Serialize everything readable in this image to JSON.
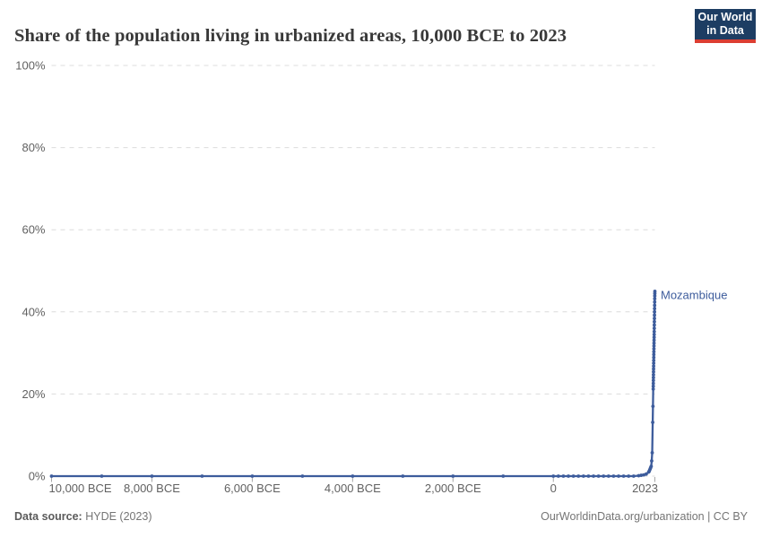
{
  "header": {
    "title": "Share of the population living in urbanized areas, 10,000 BCE to 2023",
    "logo": {
      "line1": "Our World",
      "line2": "in Data"
    }
  },
  "colors": {
    "line": "#3d5c9c",
    "grid": "#dcdcdc",
    "axis_tick": "#a8a8a8",
    "tick_label": "#616161",
    "title": "#383838",
    "footer": "#757575",
    "logo_bg": "#1d3d63",
    "logo_accent": "#dc3e32"
  },
  "chart_data": {
    "type": "line",
    "title": "Share of the population living in urbanized areas, 10,000 BCE to 2023",
    "xlabel": "",
    "ylabel": "",
    "grid": true,
    "xlim": [
      -10000,
      2023
    ],
    "ylim": [
      0,
      100
    ],
    "yticks": [
      {
        "value": 0,
        "label": "0%"
      },
      {
        "value": 20,
        "label": "20%"
      },
      {
        "value": 40,
        "label": "40%"
      },
      {
        "value": 60,
        "label": "60%"
      },
      {
        "value": 80,
        "label": "80%"
      },
      {
        "value": 100,
        "label": "100%"
      }
    ],
    "xticks": [
      {
        "value": -10000,
        "label": "10,000 BCE"
      },
      {
        "value": -8000,
        "label": "8,000 BCE"
      },
      {
        "value": -6000,
        "label": "6,000 BCE"
      },
      {
        "value": -4000,
        "label": "4,000 BCE"
      },
      {
        "value": -2000,
        "label": "2,000 BCE"
      },
      {
        "value": 0,
        "label": "0"
      },
      {
        "value": 2023,
        "label": "2023"
      }
    ],
    "legend_position": "end-of-line",
    "series": [
      {
        "name": "Mozambique",
        "color": "#3d5c9c",
        "points": [
          [
            -10000,
            0
          ],
          [
            -9000,
            0
          ],
          [
            -8000,
            0
          ],
          [
            -7000,
            0
          ],
          [
            -6000,
            0
          ],
          [
            -5000,
            0
          ],
          [
            -4000,
            0
          ],
          [
            -3000,
            0
          ],
          [
            -2000,
            0
          ],
          [
            -1000,
            0
          ],
          [
            0,
            0
          ],
          [
            100,
            0
          ],
          [
            200,
            0
          ],
          [
            300,
            0
          ],
          [
            400,
            0
          ],
          [
            500,
            0
          ],
          [
            600,
            0
          ],
          [
            700,
            0
          ],
          [
            800,
            0
          ],
          [
            900,
            0
          ],
          [
            1000,
            0
          ],
          [
            1100,
            0
          ],
          [
            1200,
            0
          ],
          [
            1300,
            0
          ],
          [
            1400,
            0
          ],
          [
            1500,
            0
          ],
          [
            1600,
            0
          ],
          [
            1700,
            0.1
          ],
          [
            1750,
            0.2
          ],
          [
            1800,
            0.3
          ],
          [
            1850,
            0.5
          ],
          [
            1900,
            1.0
          ],
          [
            1910,
            1.2
          ],
          [
            1920,
            1.5
          ],
          [
            1930,
            1.8
          ],
          [
            1940,
            2.1
          ],
          [
            1950,
            2.4
          ],
          [
            1960,
            3.7
          ],
          [
            1970,
            5.7
          ],
          [
            1980,
            13.1
          ],
          [
            1985,
            17.0
          ],
          [
            1990,
            21.2
          ],
          [
            1991,
            21.9
          ],
          [
            1992,
            22.6
          ],
          [
            1993,
            23.3
          ],
          [
            1994,
            24.0
          ],
          [
            1995,
            24.7
          ],
          [
            1996,
            25.4
          ],
          [
            1997,
            26.1
          ],
          [
            1998,
            26.8
          ],
          [
            1999,
            27.5
          ],
          [
            2000,
            28.2
          ],
          [
            2001,
            28.9
          ],
          [
            2002,
            29.6
          ],
          [
            2003,
            30.3
          ],
          [
            2004,
            31.0
          ],
          [
            2005,
            31.7
          ],
          [
            2006,
            32.4
          ],
          [
            2007,
            33.1
          ],
          [
            2008,
            33.8
          ],
          [
            2009,
            34.5
          ],
          [
            2010,
            35.2
          ],
          [
            2011,
            36.0
          ],
          [
            2012,
            36.8
          ],
          [
            2013,
            37.6
          ],
          [
            2014,
            38.4
          ],
          [
            2015,
            39.2
          ],
          [
            2016,
            40.0
          ],
          [
            2017,
            40.8
          ],
          [
            2018,
            41.6
          ],
          [
            2019,
            42.4
          ],
          [
            2020,
            43.2
          ],
          [
            2021,
            43.9
          ],
          [
            2022,
            44.5
          ],
          [
            2023,
            45.0
          ]
        ]
      }
    ]
  },
  "footer": {
    "source_label": "Data source:",
    "source_value": " HYDE (2023)",
    "link": "OurWorldinData.org/urbanization | CC BY"
  }
}
